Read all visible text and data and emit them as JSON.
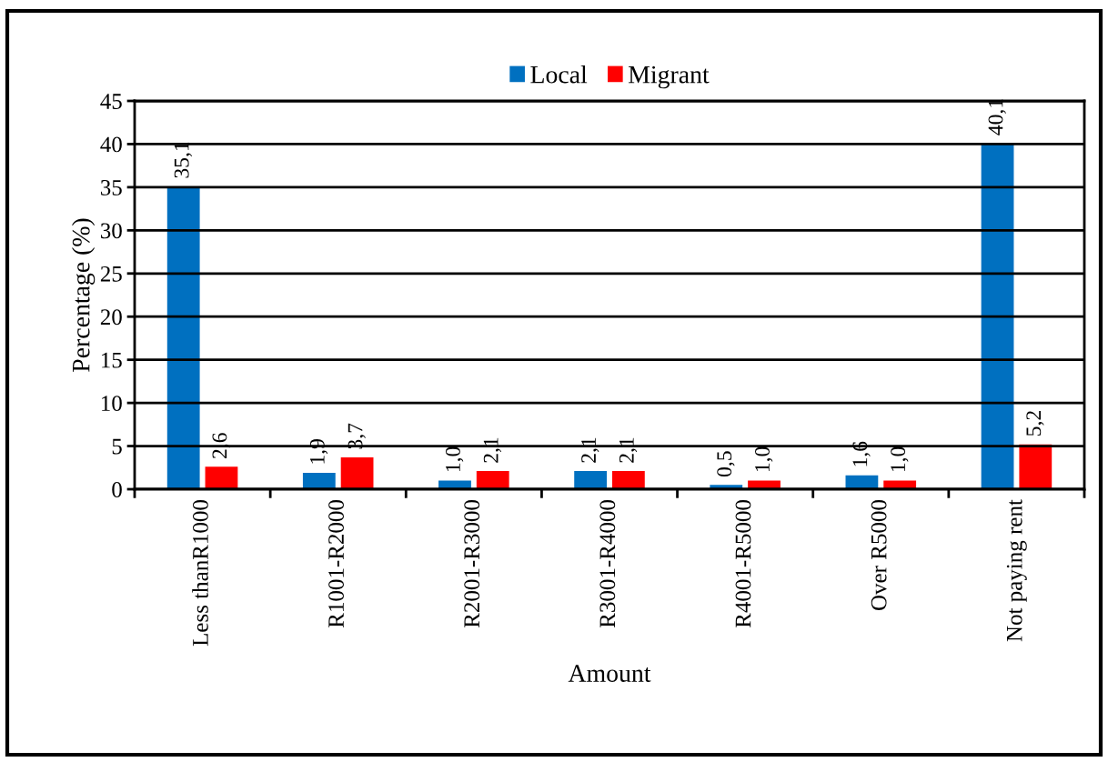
{
  "chart_data": {
    "type": "bar",
    "xlabel": "Amount",
    "ylabel": "Percentage (%)",
    "categories": [
      "Less thanR1000",
      "R1001-R2000",
      "R2001-R3000",
      "R3001-R4000",
      "R4001-R5000",
      "Over R5000",
      "Not paying rent"
    ],
    "series": [
      {
        "name": "Local",
        "color": "#0070c0",
        "values": [
          35.1,
          1.9,
          1.0,
          2.1,
          0.5,
          1.6,
          40.1
        ],
        "value_labels": [
          "35,1",
          "1,9",
          "1,0",
          "2,1",
          "0,5",
          "1,6",
          "40,1"
        ]
      },
      {
        "name": "Migrant",
        "color": "#ff0000",
        "values": [
          2.6,
          3.7,
          2.1,
          2.1,
          1.0,
          1.0,
          5.2
        ],
        "value_labels": [
          "2,6",
          "3,7",
          "2,1",
          "2,1",
          "1,0",
          "1,0",
          "5,2"
        ]
      }
    ],
    "ylim": [
      0,
      45
    ],
    "yticks": [
      0,
      5,
      10,
      15,
      20,
      25,
      30,
      35,
      40,
      45
    ],
    "grid": "y",
    "legend": "top"
  }
}
